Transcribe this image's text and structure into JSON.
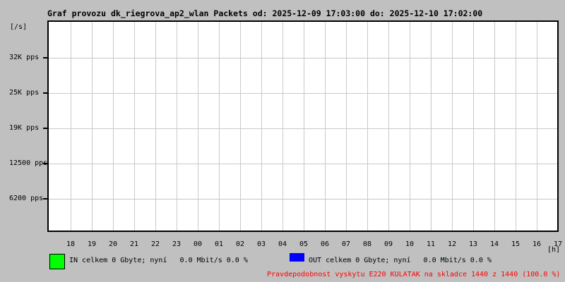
{
  "window": {
    "title": "Graf provozu dk_riegrova_ap2_wlan Packets od: 2025-12-09 17:03:00 do: 2025-12-10 17:02:00"
  },
  "colors": {
    "background": "#c0c0c0",
    "plot_background": "#ffffff",
    "grid": "#c9c9c9",
    "axis": "#000000",
    "in_series": "#00ff00",
    "out_series": "#0000ff",
    "warning_text": "#ff0000"
  },
  "chart_data": {
    "type": "area",
    "title": "Graf provozu dk_riegrova_ap2_wlan Packets od: 2025-12-09 17:03:00 do: 2025-12-10 17:02:00",
    "xlabel": "[h]",
    "ylabel": "[/s]",
    "x_ticks": [
      "18",
      "19",
      "20",
      "21",
      "22",
      "23",
      "00",
      "01",
      "02",
      "03",
      "04",
      "05",
      "06",
      "07",
      "08",
      "09",
      "10",
      "11",
      "12",
      "13",
      "14",
      "15",
      "16",
      "17"
    ],
    "y_ticks": [
      {
        "label": "32K pps",
        "value": 32000
      },
      {
        "label": "25K pps",
        "value": 25000
      },
      {
        "label": "19K pps",
        "value": 19000
      },
      {
        "label": "12500 pps",
        "value": 12500
      },
      {
        "label": "6200 pps",
        "value": 6200
      }
    ],
    "ylim": [
      0,
      37000
    ],
    "grid": true,
    "legend_position": "bottom",
    "series": [
      {
        "name": "IN",
        "color": "#00ff00",
        "values": [
          0,
          0,
          0,
          0,
          0,
          0,
          0,
          0,
          0,
          0,
          0,
          0,
          0,
          0,
          0,
          0,
          0,
          0,
          0,
          0,
          0,
          0,
          0,
          0
        ]
      },
      {
        "name": "OUT",
        "color": "#0000ff",
        "values": [
          0,
          0,
          0,
          0,
          0,
          0,
          0,
          0,
          0,
          0,
          0,
          0,
          0,
          0,
          0,
          0,
          0,
          0,
          0,
          0,
          0,
          0,
          0,
          0
        ]
      }
    ]
  },
  "legend": {
    "in_label": "IN celkem 0 Gbyte; nyní   0.0 Mbit/s 0.0 %",
    "out_label": "OUT celkem 0 Gbyte; nyní   0.0 Mbit/s 0.0 %"
  },
  "footer": {
    "warning": "Pravdepodobnost vyskytu E220 KULATAK na skladce 1440 z 1440 (100.0 %)"
  }
}
